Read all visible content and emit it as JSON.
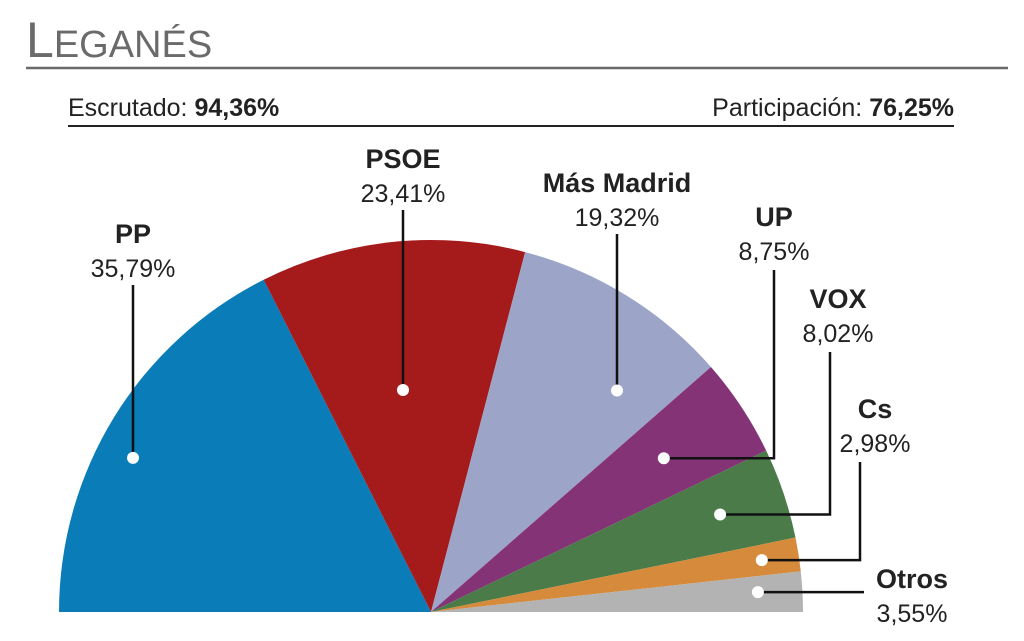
{
  "header": {
    "title_initial": "L",
    "title_rest": "EGANÉS",
    "scrutinized_label": "Escrutado:",
    "scrutinized_value": "94,36%",
    "turnout_label": "Participación:",
    "turnout_value": "76,25%"
  },
  "chart_data": {
    "type": "pie",
    "title": "LEGANÉS",
    "shape": "semicircle",
    "slices": [
      {
        "name": "PP",
        "label": "35,79%",
        "value": 35.79,
        "color": "#0a7cb8"
      },
      {
        "name": "PSOE",
        "label": "23,41%",
        "value": 23.41,
        "color": "#a51b1c"
      },
      {
        "name": "Más Madrid",
        "label": "19,32%",
        "value": 19.32,
        "color": "#9ca4c8"
      },
      {
        "name": "UP",
        "label": "8,75%",
        "value": 8.75,
        "color": "#843377"
      },
      {
        "name": "VOX",
        "label": "8,02%",
        "value": 8.02,
        "color": "#4a7b48"
      },
      {
        "name": "Cs",
        "label": "2,98%",
        "value": 2.98,
        "color": "#d58b3b"
      },
      {
        "name": "Otros",
        "label": "3,55%",
        "value": 3.55,
        "color": "#b3b3b3"
      }
    ]
  }
}
